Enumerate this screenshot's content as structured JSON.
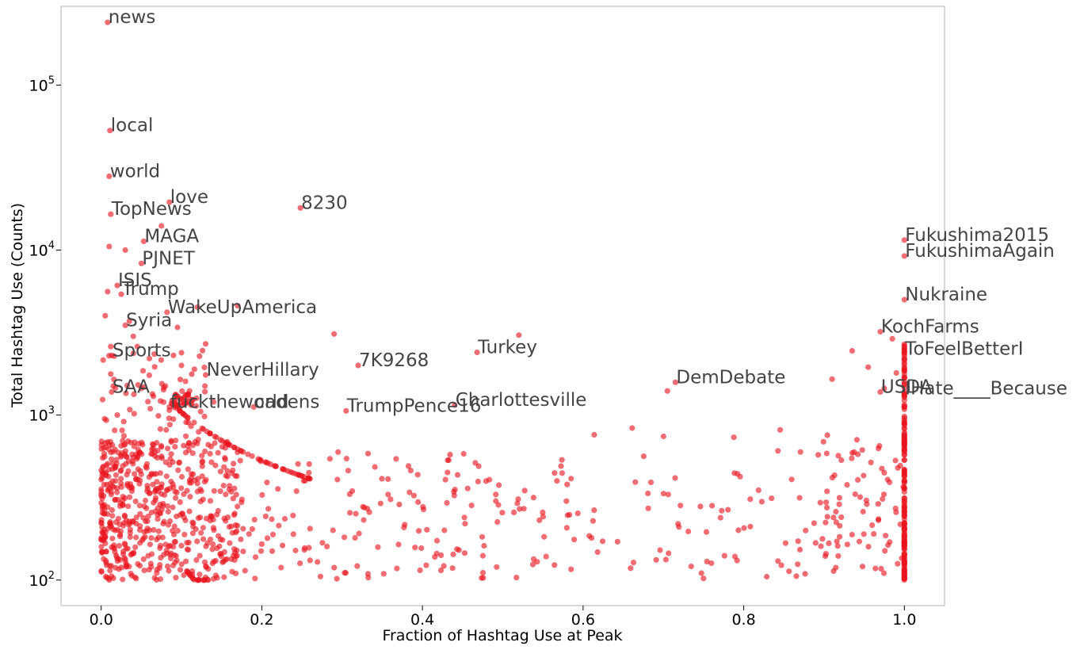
{
  "chart_data": {
    "type": "scatter",
    "title": "",
    "xlabel": "Fraction of Hashtag Use at Peak",
    "ylabel": "Total Hashtag Use (Counts)",
    "xlim": [
      -0.05,
      1.05
    ],
    "ylim": [
      70,
      300000
    ],
    "y_scale": "log",
    "grid": false,
    "marker_color": "#e8141d",
    "x_ticks": [
      {
        "value": 0.0,
        "label": "0.0"
      },
      {
        "value": 0.2,
        "label": "0.2"
      },
      {
        "value": 0.4,
        "label": "0.4"
      },
      {
        "value": 0.6,
        "label": "0.6"
      },
      {
        "value": 0.8,
        "label": "0.8"
      },
      {
        "value": 1.0,
        "label": "1.0"
      }
    ],
    "y_ticks": [
      {
        "value": 100,
        "base": "10",
        "exp": "2"
      },
      {
        "value": 1000,
        "base": "10",
        "exp": "3"
      },
      {
        "value": 10000,
        "base": "10",
        "exp": "4"
      },
      {
        "value": 100000,
        "base": "10",
        "exp": "5"
      }
    ],
    "annotations": [
      {
        "text": "news",
        "x": 0.008,
        "y": 240000
      },
      {
        "text": "local",
        "x": 0.011,
        "y": 53000
      },
      {
        "text": "world",
        "x": 0.01,
        "y": 28000
      },
      {
        "text": "love",
        "x": 0.085,
        "y": 19500
      },
      {
        "text": "8230",
        "x": 0.248,
        "y": 18000
      },
      {
        "text": "TopNews",
        "x": 0.012,
        "y": 16500
      },
      {
        "text": "MAGA",
        "x": 0.053,
        "y": 11300
      },
      {
        "text": "PJNET",
        "x": 0.05,
        "y": 8300
      },
      {
        "text": "ISIS",
        "x": 0.02,
        "y": 6100
      },
      {
        "text": "Trump",
        "x": 0.025,
        "y": 5400
      },
      {
        "text": "WakeUpAmerica",
        "x": 0.082,
        "y": 4200
      },
      {
        "text": "Syria",
        "x": 0.03,
        "y": 3500
      },
      {
        "text": "Sports",
        "x": 0.013,
        "y": 2300
      },
      {
        "text": "NeverHillary",
        "x": 0.13,
        "y": 1750
      },
      {
        "text": "7K9268",
        "x": 0.32,
        "y": 2000
      },
      {
        "text": "Turkey",
        "x": 0.468,
        "y": 2400
      },
      {
        "text": "DemDebate",
        "x": 0.715,
        "y": 1580
      },
      {
        "text": "SAA",
        "x": 0.013,
        "y": 1380
      },
      {
        "text": "fucktheworld",
        "x": 0.085,
        "y": 1120
      },
      {
        "text": "cadens",
        "x": 0.19,
        "y": 1120
      },
      {
        "text": "TrumpPence16",
        "x": 0.305,
        "y": 1060
      },
      {
        "text": "Charlottesville",
        "x": 0.44,
        "y": 1150
      },
      {
        "text": "Fukushima2015",
        "x": 1.0,
        "y": 11500
      },
      {
        "text": "FukushimaAgain",
        "x": 1.0,
        "y": 9200
      },
      {
        "text": "Nukraine",
        "x": 1.0,
        "y": 5000
      },
      {
        "text": "KochFarms",
        "x": 0.97,
        "y": 3200
      },
      {
        "text": "ToFeelBetterI",
        "x": 1.0,
        "y": 2350
      },
      {
        "text": "USDA",
        "x": 0.97,
        "y": 1380
      },
      {
        "text": "IHate____Because",
        "x": 1.0,
        "y": 1350
      }
    ],
    "extra_points": [
      [
        0.005,
        4000
      ],
      [
        0.008,
        5600
      ],
      [
        0.01,
        10500
      ],
      [
        0.012,
        2600
      ],
      [
        0.015,
        1500
      ],
      [
        0.02,
        1000
      ],
      [
        0.03,
        10000
      ],
      [
        0.035,
        3700
      ],
      [
        0.04,
        3000
      ],
      [
        0.045,
        2600
      ],
      [
        0.05,
        1450
      ],
      [
        0.06,
        2200
      ],
      [
        0.065,
        1300
      ],
      [
        0.075,
        14000
      ],
      [
        0.08,
        1500
      ],
      [
        0.09,
        2300
      ],
      [
        0.095,
        3400
      ],
      [
        0.1,
        2000
      ],
      [
        0.105,
        1600
      ],
      [
        0.11,
        1400
      ],
      [
        0.12,
        4500
      ],
      [
        0.13,
        2700
      ],
      [
        0.14,
        1200
      ],
      [
        0.17,
        4600
      ],
      [
        0.29,
        3100
      ],
      [
        0.52,
        3050
      ],
      [
        0.705,
        1400
      ],
      [
        0.91,
        1650
      ],
      [
        0.935,
        2450
      ],
      [
        0.955,
        1950
      ],
      [
        0.985,
        2900
      ],
      [
        0.99,
        1800
      ],
      [
        0.975,
        1450
      ]
    ]
  }
}
